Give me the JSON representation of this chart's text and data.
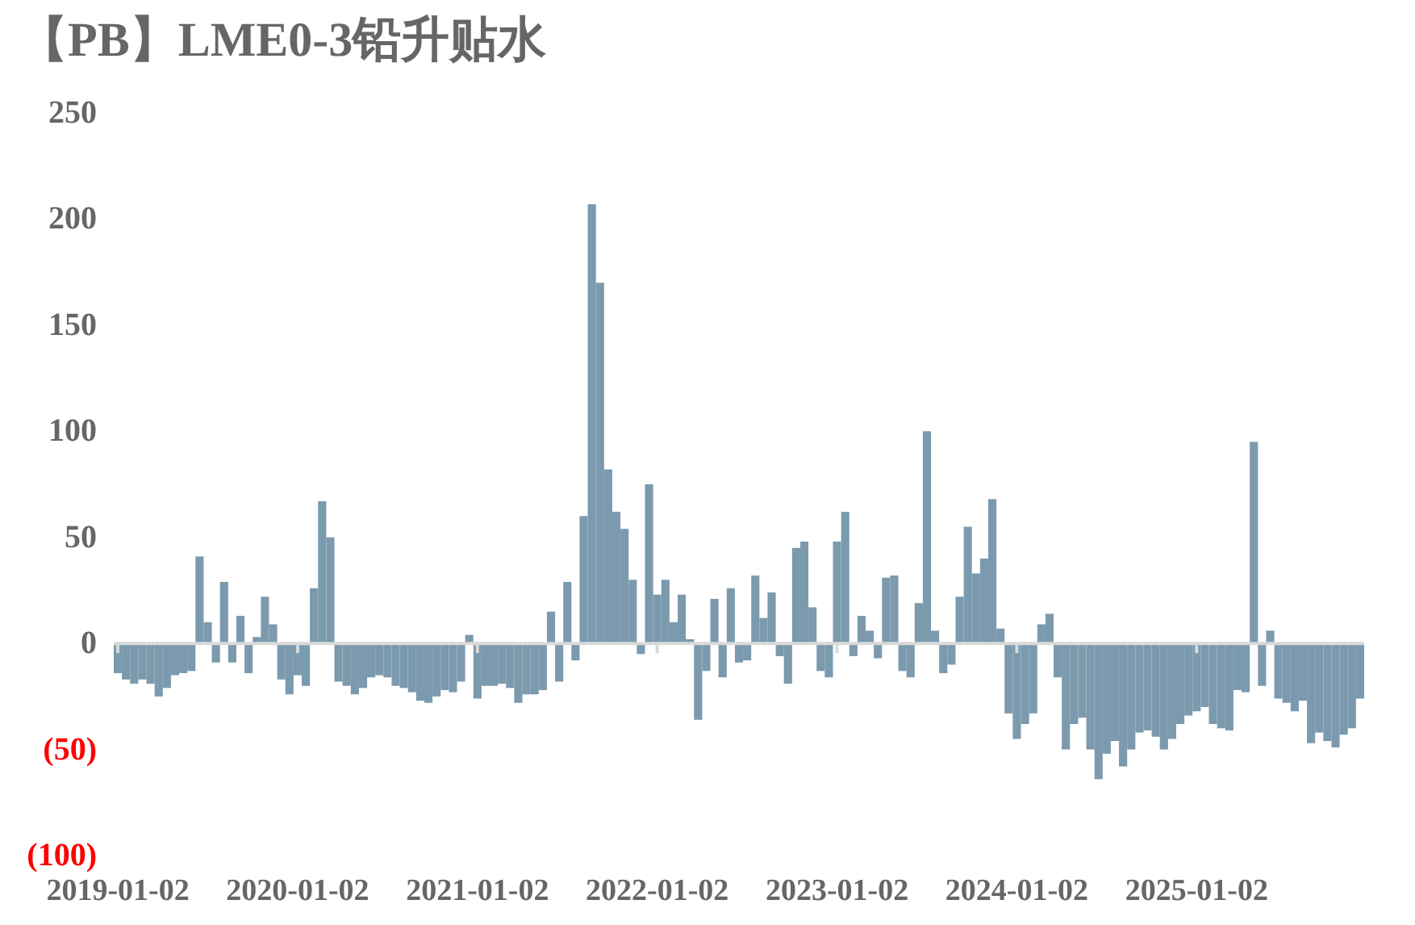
{
  "chart_data": {
    "type": "bar",
    "title": "【PB】LME0-3铅升贴水",
    "categories": [
      "2019-01-02",
      null,
      null,
      null,
      null,
      null,
      null,
      null,
      null,
      null,
      null,
      null,
      null,
      null,
      null,
      null,
      null,
      null,
      null,
      null,
      null,
      null,
      "2020-01-02",
      null,
      null,
      null,
      null,
      null,
      null,
      null,
      null,
      null,
      null,
      null,
      null,
      null,
      null,
      null,
      null,
      null,
      null,
      null,
      null,
      null,
      "2021-01-02",
      null,
      null,
      null,
      null,
      null,
      null,
      null,
      null,
      null,
      null,
      null,
      null,
      null,
      null,
      null,
      null,
      null,
      null,
      null,
      null,
      null,
      "2022-01-02",
      null,
      null,
      null,
      null,
      null,
      null,
      null,
      null,
      null,
      null,
      null,
      null,
      null,
      null,
      null,
      null,
      null,
      null,
      null,
      null,
      null,
      "2023-01-02",
      null,
      null,
      null,
      null,
      null,
      null,
      null,
      null,
      null,
      null,
      null,
      null,
      null,
      null,
      null,
      null,
      null,
      null,
      null,
      null,
      null,
      "2024-01-02",
      null,
      null,
      null,
      null,
      null,
      null,
      null,
      null,
      null,
      null,
      null,
      null,
      null,
      null,
      null,
      null,
      null,
      null,
      null,
      null,
      null,
      "2025-01-02",
      null,
      null,
      null,
      null,
      null,
      null,
      null,
      null,
      null,
      null,
      null,
      null,
      null,
      null,
      null,
      null,
      null,
      null,
      null,
      null
    ],
    "values": [
      -14,
      -17,
      -19,
      -17,
      -19,
      -25,
      -21,
      -15,
      -14,
      -13,
      41,
      10,
      -9,
      29,
      -9,
      13,
      -14,
      3,
      22,
      9,
      -17,
      -24,
      -15,
      -20,
      26,
      67,
      50,
      -18,
      -20,
      -24,
      -21,
      -16,
      -15,
      -16,
      -20,
      -21,
      -23,
      -27,
      -28,
      -25,
      -22,
      -23,
      -18,
      4,
      -26,
      -20,
      -20,
      -19,
      -21,
      -28,
      -24,
      -24,
      -22,
      15,
      -18,
      29,
      -8,
      60,
      207,
      170,
      82,
      62,
      54,
      30,
      -5,
      75,
      23,
      30,
      10,
      23,
      2,
      -36,
      -13,
      21,
      -16,
      26,
      -9,
      -8,
      32,
      12,
      24,
      -6,
      -19,
      45,
      48,
      17,
      -13,
      -16,
      48,
      62,
      -6,
      13,
      6,
      -7,
      31,
      32,
      -13,
      -16,
      19,
      100,
      6,
      -14,
      -10,
      22,
      55,
      33,
      40,
      68,
      7,
      -33,
      -45,
      -38,
      -33,
      9,
      14,
      -16,
      -50,
      -38,
      -35,
      -50,
      -64,
      -52,
      -46,
      -58,
      -50,
      -42,
      -41,
      -44,
      -50,
      -45,
      -38,
      -34,
      -32,
      -30,
      -38,
      -40,
      -41,
      -22,
      -23,
      95,
      -20,
      6,
      -26,
      -28,
      -32,
      -27,
      -47,
      -42,
      -46,
      -49,
      -43,
      -40,
      -26
    ],
    "color": "#7b9aae",
    "ylim": [
      -100,
      250
    ],
    "yticks": [
      {
        "value": -100,
        "label": "(100)"
      },
      {
        "value": -50,
        "label": "(50)"
      },
      0,
      50,
      100,
      150,
      200,
      250
    ]
  }
}
